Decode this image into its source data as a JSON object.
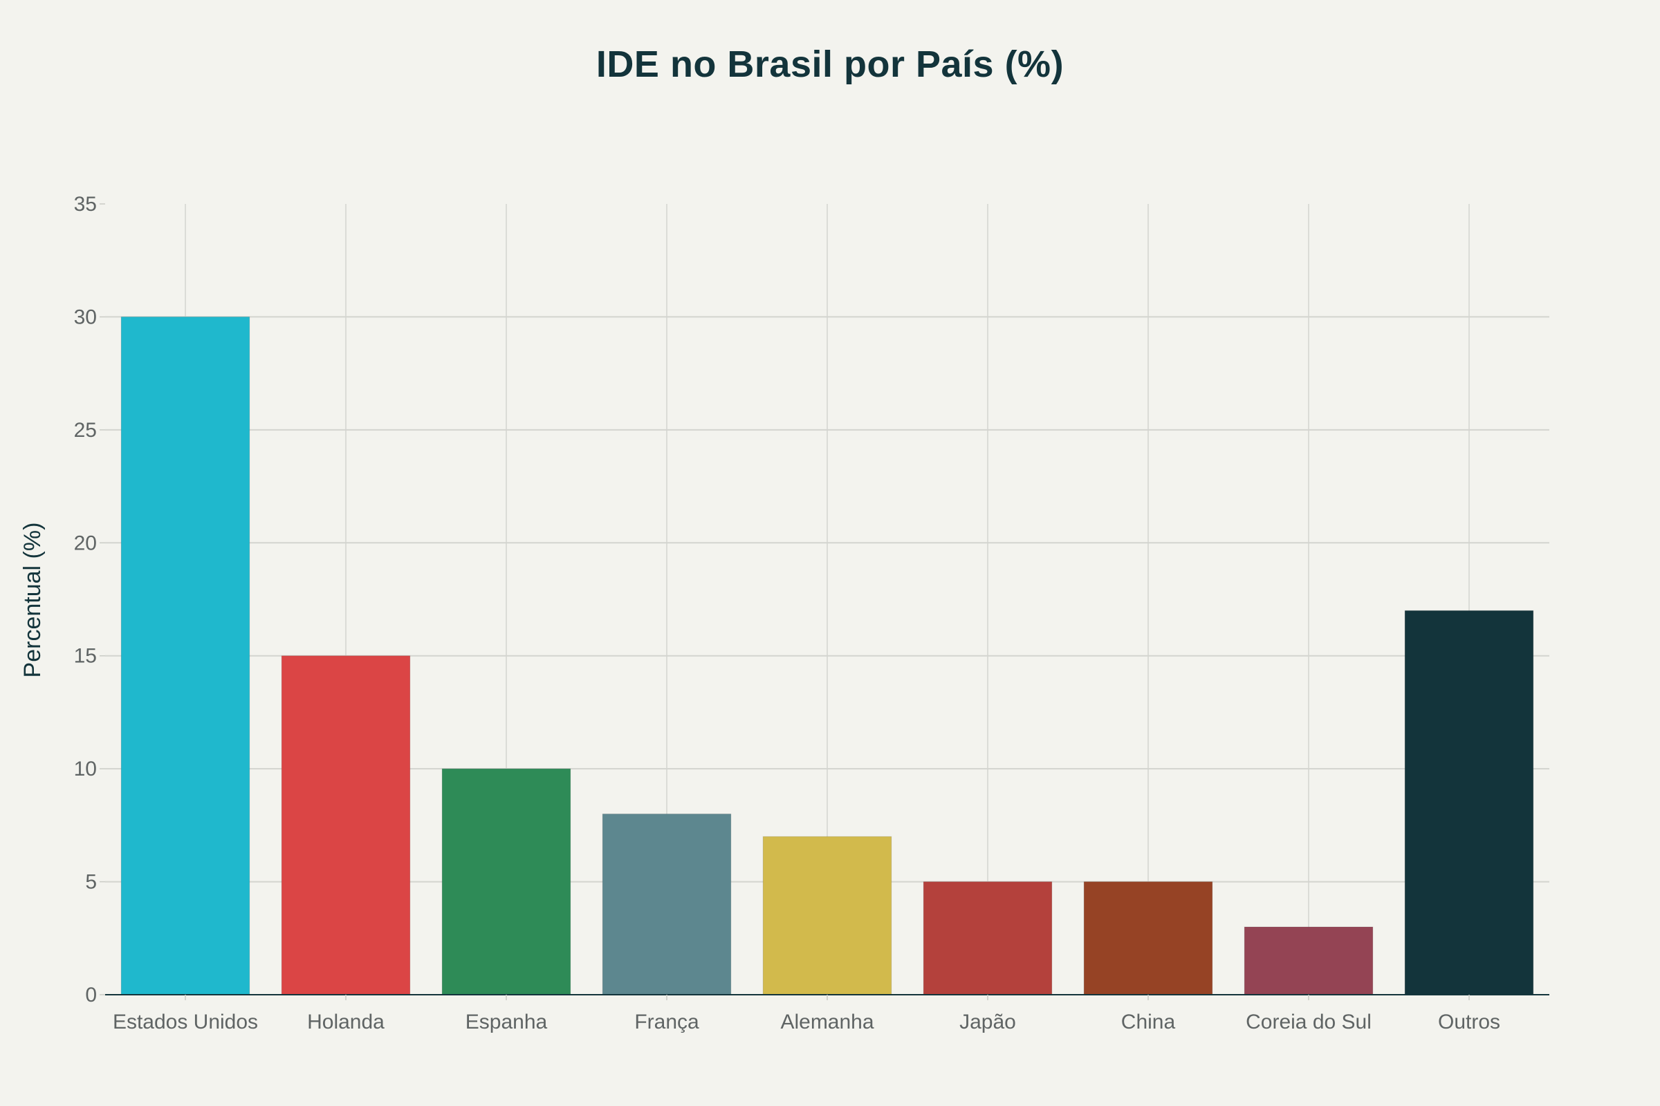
{
  "chart_data": {
    "type": "bar",
    "title": "IDE no Brasil por País (%)",
    "xlabel": "",
    "ylabel": "Percentual (%)",
    "categories": [
      "Estados Unidos",
      "Holanda",
      "Espanha",
      "França",
      "Alemanha",
      "Japão",
      "China",
      "Coreia do Sul",
      "Outros"
    ],
    "values": [
      30,
      15,
      10,
      8,
      7,
      5,
      5,
      3,
      17
    ],
    "colors": [
      "#1fb8cd",
      "#db4545",
      "#2e8b57",
      "#5d878f",
      "#d2ba4c",
      "#b4413c",
      "#964325",
      "#944454",
      "#13343b"
    ],
    "ylim": [
      0,
      35
    ],
    "yticks": [
      0,
      5,
      10,
      15,
      20,
      25,
      30,
      35
    ],
    "grid": true,
    "legend": "none",
    "background": "#f3f3ee"
  }
}
